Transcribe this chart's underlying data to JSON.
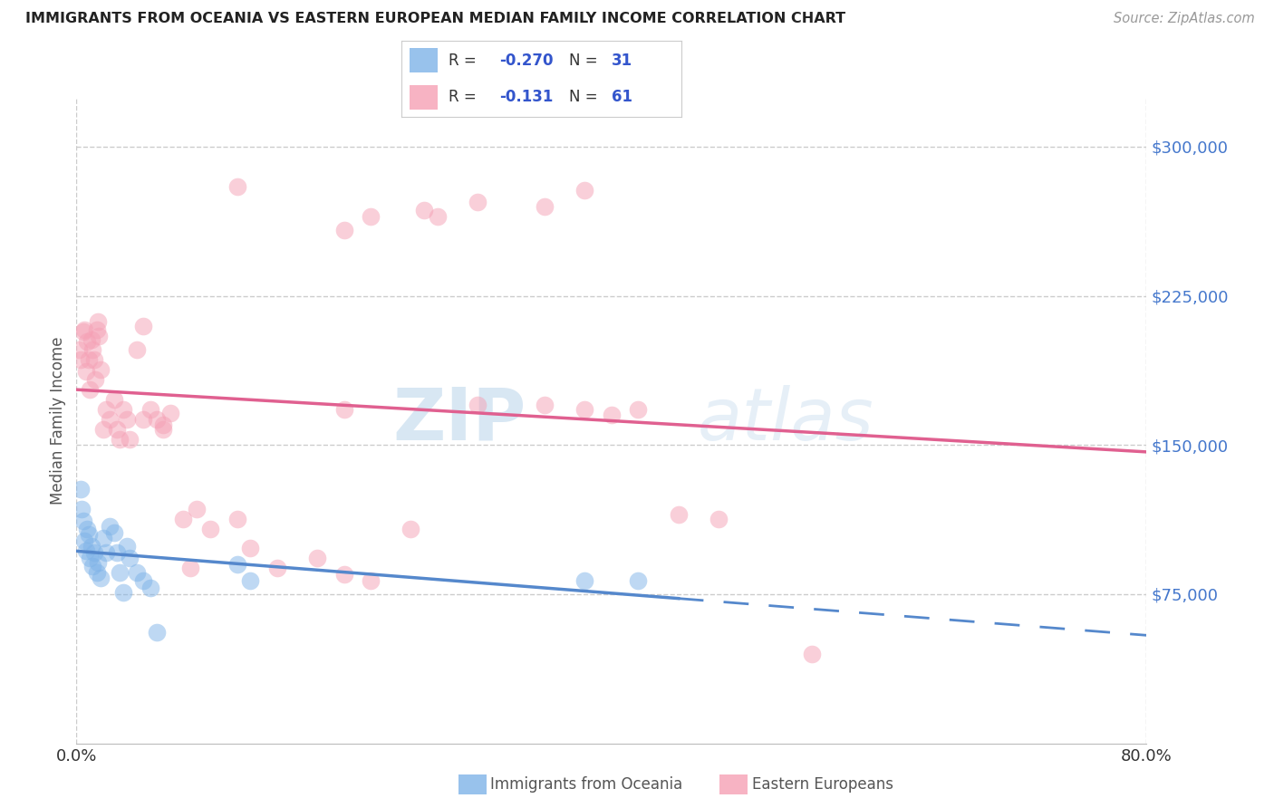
{
  "title": "IMMIGRANTS FROM OCEANIA VS EASTERN EUROPEAN MEDIAN FAMILY INCOME CORRELATION CHART",
  "source": "Source: ZipAtlas.com",
  "ylabel": "Median Family Income",
  "xmin": 0.0,
  "xmax": 0.8,
  "ymin": 0,
  "ymax": 325000,
  "yticks": [
    75000,
    150000,
    225000,
    300000
  ],
  "ytick_labels": [
    "$75,000",
    "$150,000",
    "$225,000",
    "$300,000"
  ],
  "xtick_labels": [
    "0.0%",
    "80.0%"
  ],
  "xtick_positions": [
    0.0,
    0.8
  ],
  "legend_blue_r": "-0.270",
  "legend_blue_n": "31",
  "legend_pink_r": "-0.131",
  "legend_pink_n": "61",
  "blue_color": "#7EB3E8",
  "pink_color": "#F5A0B5",
  "blue_line_color": "#5588CC",
  "pink_line_color": "#E06090",
  "watermark_zip": "ZIP",
  "watermark_atlas": "atlas",
  "blue_scatter_x": [
    0.003,
    0.004,
    0.005,
    0.006,
    0.007,
    0.008,
    0.009,
    0.01,
    0.011,
    0.012,
    0.013,
    0.015,
    0.016,
    0.018,
    0.02,
    0.022,
    0.025,
    0.028,
    0.03,
    0.032,
    0.035,
    0.038,
    0.04,
    0.045,
    0.05,
    0.055,
    0.06,
    0.12,
    0.13,
    0.38,
    0.42
  ],
  "blue_scatter_y": [
    128000,
    118000,
    112000,
    102000,
    97000,
    108000,
    105000,
    93000,
    99000,
    89000,
    96000,
    86000,
    91000,
    83000,
    103000,
    96000,
    109000,
    106000,
    96000,
    86000,
    76000,
    99000,
    93000,
    86000,
    82000,
    78000,
    56000,
    90000,
    82000,
    82000,
    82000
  ],
  "pink_scatter_x": [
    0.002,
    0.003,
    0.005,
    0.006,
    0.007,
    0.008,
    0.009,
    0.01,
    0.011,
    0.012,
    0.013,
    0.014,
    0.015,
    0.016,
    0.017,
    0.018,
    0.02,
    0.022,
    0.025,
    0.028,
    0.03,
    0.032,
    0.035,
    0.038,
    0.04,
    0.045,
    0.05,
    0.055,
    0.06,
    0.065,
    0.07,
    0.08,
    0.09,
    0.1,
    0.12,
    0.13,
    0.15,
    0.18,
    0.2,
    0.22,
    0.25,
    0.3,
    0.35,
    0.38,
    0.4,
    0.42,
    0.45,
    0.48,
    0.05,
    0.2,
    0.22,
    0.26,
    0.38,
    0.065,
    0.085,
    0.35,
    0.27,
    0.3,
    0.55,
    0.12,
    0.2
  ],
  "pink_scatter_y": [
    198000,
    193000,
    207000,
    208000,
    187000,
    202000,
    193000,
    178000,
    203000,
    198000,
    193000,
    183000,
    208000,
    212000,
    205000,
    188000,
    158000,
    168000,
    163000,
    173000,
    158000,
    153000,
    168000,
    163000,
    153000,
    198000,
    163000,
    168000,
    163000,
    158000,
    166000,
    113000,
    118000,
    108000,
    113000,
    98000,
    88000,
    93000,
    168000,
    82000,
    108000,
    170000,
    170000,
    168000,
    165000,
    168000,
    115000,
    113000,
    210000,
    258000,
    265000,
    268000,
    278000,
    160000,
    88000,
    270000,
    265000,
    272000,
    45000,
    280000,
    85000
  ]
}
